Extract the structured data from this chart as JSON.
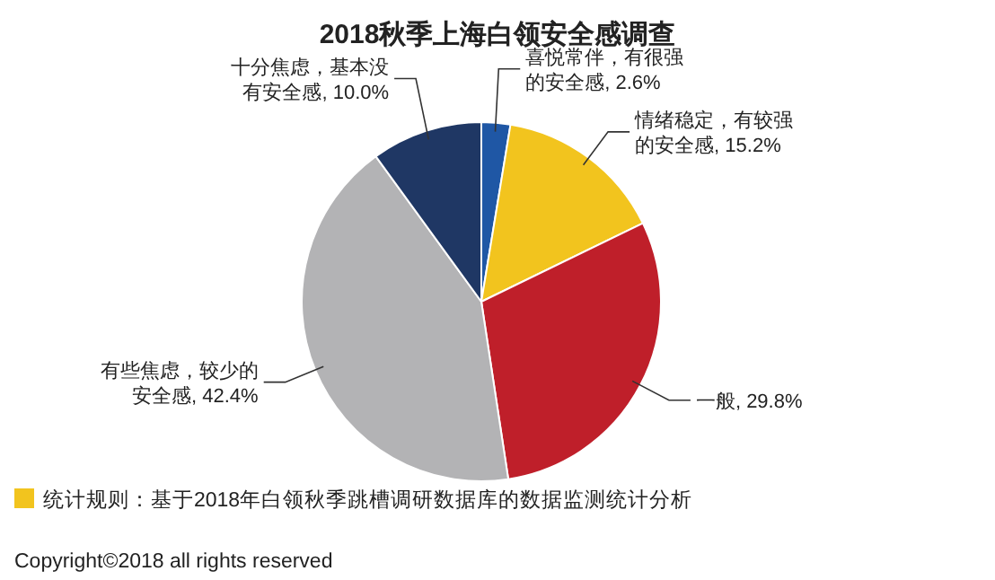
{
  "chart_data": {
    "type": "pie",
    "title": "2018秋季上海白领安全感调查",
    "categories": [
      "喜悦常伴，有很强的安全感",
      "情绪稳定，有较强的安全感",
      "一般",
      "有些焦虑，较少的安全感",
      "十分焦虑，基本没有安全感"
    ],
    "values": [
      2.6,
      15.2,
      29.8,
      42.4,
      10.0
    ],
    "colors": [
      "#1f57a5",
      "#f2c41e",
      "#bf1f2a",
      "#b3b3b5",
      "#1f3764"
    ],
    "value_labels": [
      ", 2.6%",
      ", 15.2%",
      ", 29.8%",
      ", 42.4%",
      ", 10.0%"
    ],
    "annotations": [
      "统计规则：基于2018年白领秋季跳槽调研数据库的数据监测统计分析",
      "Copyright©2018 all rights reserved"
    ]
  }
}
